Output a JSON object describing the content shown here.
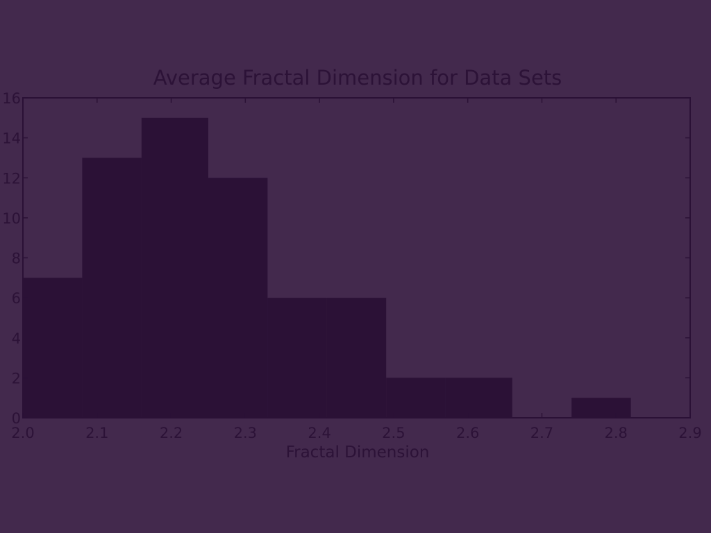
{
  "chart_data": {
    "type": "bar",
    "title": "Average Fractal Dimension for Data Sets",
    "xlabel": "Fractal Dimension",
    "ylabel": "",
    "xlim": [
      2.0,
      2.9
    ],
    "ylim": [
      0,
      16
    ],
    "x_ticks": [
      "2.0",
      "2.1",
      "2.2",
      "2.3",
      "2.4",
      "2.5",
      "2.6",
      "2.7",
      "2.8",
      "2.9"
    ],
    "y_ticks": [
      "0",
      "2",
      "4",
      "6",
      "8",
      "10",
      "12",
      "14",
      "16"
    ],
    "bins": [
      {
        "x0": 2.0,
        "x1": 2.08,
        "count": 7
      },
      {
        "x0": 2.08,
        "x1": 2.16,
        "count": 13
      },
      {
        "x0": 2.16,
        "x1": 2.25,
        "count": 15
      },
      {
        "x0": 2.25,
        "x1": 2.33,
        "count": 12
      },
      {
        "x0": 2.33,
        "x1": 2.41,
        "count": 6
      },
      {
        "x0": 2.41,
        "x1": 2.49,
        "count": 6
      },
      {
        "x0": 2.49,
        "x1": 2.57,
        "count": 2
      },
      {
        "x0": 2.57,
        "x1": 2.66,
        "count": 2
      },
      {
        "x0": 2.66,
        "x1": 2.74,
        "count": 0
      },
      {
        "x0": 2.74,
        "x1": 2.82,
        "count": 1
      },
      {
        "x0": 2.82,
        "x1": 2.9,
        "count": 0
      }
    ],
    "grid": false,
    "colors": {
      "background": "#43294d",
      "bar": "#2b1136",
      "axis": "#2b1136",
      "text": "#2c1237"
    }
  }
}
